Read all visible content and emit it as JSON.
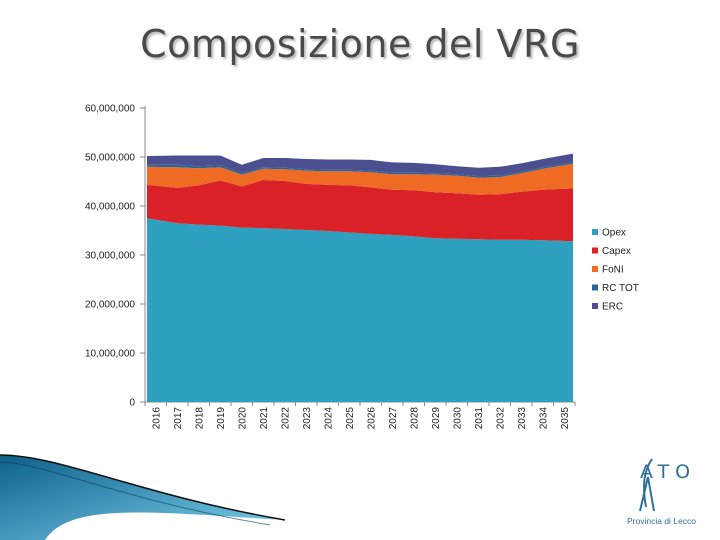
{
  "page": {
    "title": "Composizione del VRG"
  },
  "chart_data": {
    "type": "area",
    "stacked": true,
    "title": "Composizione del VRG",
    "xlabel": "",
    "ylabel": "",
    "ylim": [
      0,
      60000000
    ],
    "y_ticks": [
      0,
      10000000,
      20000000,
      30000000,
      40000000,
      50000000,
      60000000
    ],
    "y_tick_labels": [
      "0",
      "10,000,000",
      "20,000,000",
      "30,000,000",
      "40,000,000",
      "50,000,000",
      "60,000,000"
    ],
    "categories": [
      "2016",
      "2017",
      "2018",
      "2019",
      "2020",
      "2021",
      "2022",
      "2023",
      "2024",
      "2025",
      "2026",
      "2027",
      "2028",
      "2029",
      "2030",
      "2031",
      "2032",
      "2033",
      "2034",
      "2035"
    ],
    "legend_position": "right",
    "series": [
      {
        "name": "Opex",
        "color": "#2ea0c0",
        "values": [
          37500000,
          36500000,
          36200000,
          36000000,
          35600000,
          35500000,
          35300000,
          35100000,
          34900000,
          34600000,
          34300000,
          34100000,
          33800000,
          33400000,
          33300000,
          33200000,
          33100000,
          33100000,
          33000000,
          32800000
        ]
      },
      {
        "name": "Capex",
        "color": "#da2128",
        "values": [
          6800000,
          7200000,
          8000000,
          9200000,
          8400000,
          9800000,
          9800000,
          9400000,
          9400000,
          9600000,
          9500000,
          9200000,
          9400000,
          9400000,
          9300000,
          9100000,
          9300000,
          9800000,
          10300000,
          10800000
        ]
      },
      {
        "name": "FoNI",
        "color": "#ef6a23",
        "values": [
          3700000,
          4200000,
          3500000,
          2700000,
          2400000,
          2300000,
          2400000,
          2700000,
          2800000,
          2900000,
          3100000,
          3200000,
          3300000,
          3600000,
          3600000,
          3500000,
          3500000,
          3800000,
          4300000,
          5000000
        ]
      },
      {
        "name": "RC TOT",
        "color": "#2a6496",
        "values": [
          400000,
          500000,
          400000,
          400000,
          300000,
          300000,
          300000,
          300000,
          300000,
          300000,
          300000,
          300000,
          300000,
          300000,
          300000,
          300000,
          300000,
          300000,
          300000,
          300000
        ]
      },
      {
        "name": "ERC",
        "color": "#4b4f8f",
        "values": [
          1800000,
          1900000,
          2200000,
          2000000,
          1700000,
          1900000,
          2000000,
          2100000,
          2100000,
          2100000,
          2200000,
          2100000,
          2000000,
          1800000,
          1600000,
          1700000,
          1800000,
          1700000,
          1700000,
          1800000
        ]
      }
    ]
  },
  "logo": {
    "word": "ATO",
    "subtitle": "Provincia di Lecco"
  }
}
